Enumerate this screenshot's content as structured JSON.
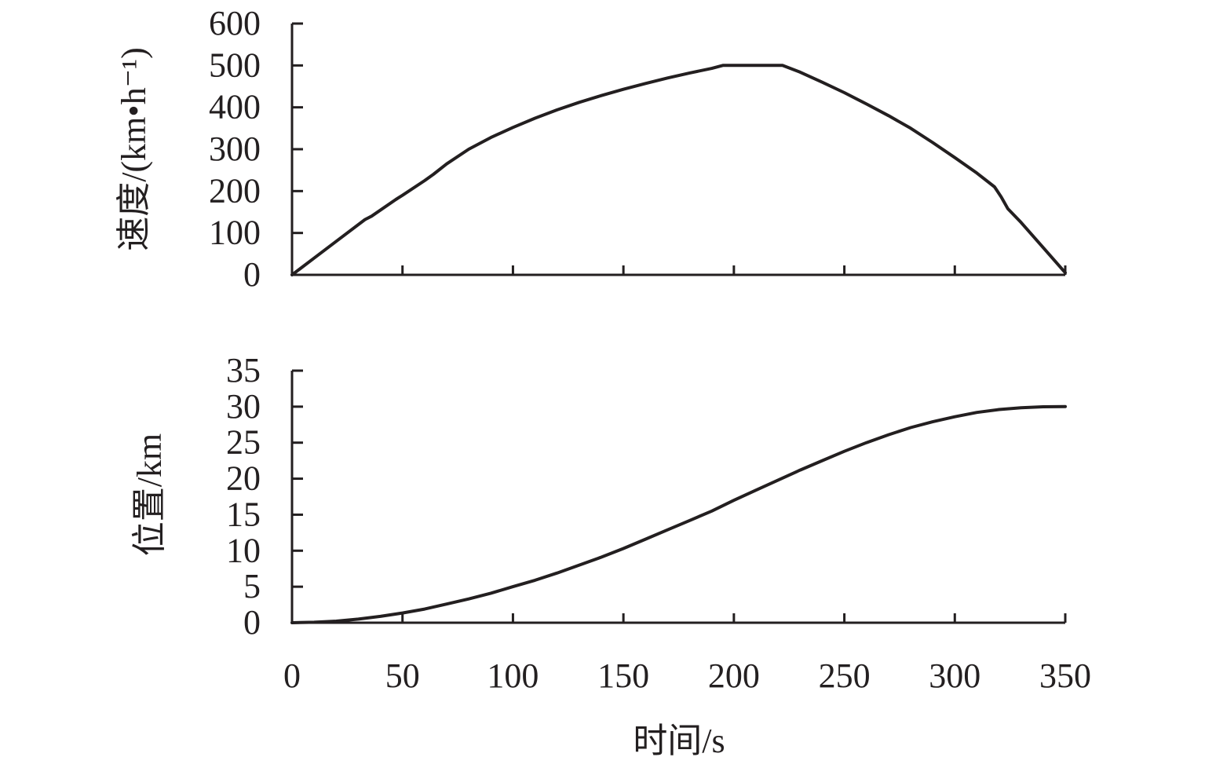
{
  "chart_data": [
    {
      "type": "line",
      "xlabel": "",
      "ylabel": "速度/(km•h⁻¹)",
      "xlim": [
        0,
        350
      ],
      "ylim": [
        0,
        600
      ],
      "xticks": [
        0,
        50,
        100,
        150,
        200,
        250,
        300,
        350
      ],
      "yticks": [
        0,
        100,
        200,
        300,
        400,
        500,
        600
      ],
      "xtick_labels_shown": false,
      "grid": false,
      "series": [
        {
          "x": [
            0,
            10,
            20,
            33,
            36,
            47,
            50,
            60,
            64,
            70,
            80,
            90,
            100,
            110,
            120,
            130,
            140,
            150,
            160,
            170,
            180,
            190,
            195,
            222,
            230,
            240,
            250,
            260,
            270,
            280,
            290,
            300,
            310,
            318,
            321,
            324,
            330,
            340,
            350
          ],
          "y": [
            0,
            40,
            80,
            132,
            140,
            180,
            190,
            225,
            240,
            265,
            300,
            328,
            352,
            374,
            394,
            412,
            428,
            443,
            457,
            470,
            482,
            493,
            500,
            500,
            484,
            460,
            435,
            408,
            380,
            350,
            316,
            280,
            243,
            210,
            186,
            158,
            125,
            65,
            5
          ]
        }
      ]
    },
    {
      "type": "line",
      "xlabel": "时间/s",
      "ylabel": "位置/km",
      "xlim": [
        0,
        350
      ],
      "ylim": [
        0,
        35
      ],
      "xticks": [
        0,
        50,
        100,
        150,
        200,
        250,
        300,
        350
      ],
      "yticks": [
        0,
        5,
        10,
        15,
        20,
        25,
        30,
        35
      ],
      "xtick_labels_shown": true,
      "grid": false,
      "series": [
        {
          "x": [
            0,
            10,
            20,
            30,
            40,
            50,
            60,
            70,
            80,
            90,
            100,
            110,
            120,
            130,
            140,
            150,
            160,
            170,
            180,
            190,
            200,
            210,
            220,
            230,
            240,
            250,
            260,
            270,
            280,
            290,
            300,
            310,
            320,
            330,
            340,
            350
          ],
          "y": [
            0,
            0.06,
            0.22,
            0.5,
            0.88,
            1.35,
            1.9,
            2.6,
            3.3,
            4.1,
            5.0,
            5.9,
            6.9,
            8.0,
            9.1,
            10.3,
            11.6,
            12.9,
            14.2,
            15.5,
            17.0,
            18.4,
            19.8,
            21.2,
            22.5,
            23.8,
            25.0,
            26.1,
            27.1,
            27.9,
            28.6,
            29.2,
            29.6,
            29.85,
            29.98,
            30.02
          ]
        }
      ]
    }
  ]
}
